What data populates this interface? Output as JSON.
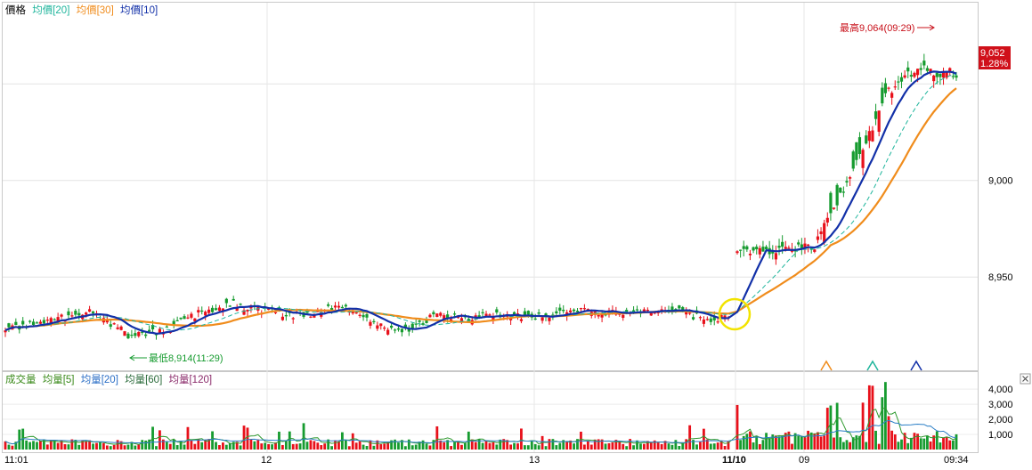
{
  "colors": {
    "up": "#e8101a",
    "down": "#169b2f",
    "ma_price_20": "#1fb59c",
    "ma_price_30": "#f08c1c",
    "ma_price_10": "#1230a8",
    "vol_ma_5": "#2f9a2f",
    "vol_ma_20": "#2a7ec6",
    "vol_ma_60": "#3a8a3a",
    "vol_ma_120": "#8a2a6a",
    "label_dark": "#000000",
    "highlight_circle": "#f2e300",
    "price_tag_bg": "#d0101a"
  },
  "price_legend": [
    {
      "text": "價格",
      "color": "#000000"
    },
    {
      "text": "均價[20]",
      "color": "#1fb59c"
    },
    {
      "text": "均價[30]",
      "color": "#f08c1c"
    },
    {
      "text": "均價[10]",
      "color": "#1230a8"
    }
  ],
  "volume_legend": [
    {
      "text": "成交量",
      "color": "#3a8a1a"
    },
    {
      "text": "均量[5]",
      "color": "#3a8a1a"
    },
    {
      "text": "均量[20]",
      "color": "#2a6ec6"
    },
    {
      "text": "均量[60]",
      "color": "#2a6a3a"
    },
    {
      "text": "均量[120]",
      "color": "#8a2a6a"
    }
  ],
  "annotations": {
    "high_label": "最高9,064(09:29)",
    "low_label": "最低8,914(11:29)",
    "last_price": "9,052",
    "last_change": "1.28%"
  },
  "chart_data": {
    "type": "candlestick",
    "price_axis": {
      "ticks": [
        "8,950",
        "9,000"
      ],
      "tick_values": [
        8950,
        9000
      ],
      "ylim": [
        8910,
        9075
      ]
    },
    "volume_axis": {
      "ticks": [
        "1,000",
        "2,000",
        "3,000",
        "4,000"
      ],
      "tick_values": [
        1000,
        2000,
        3000,
        4000
      ],
      "ylim": [
        0,
        4300
      ]
    },
    "x_ticks": [
      {
        "label": "11:01",
        "bold": false
      },
      {
        "label": "12",
        "bold": false
      },
      {
        "label": "13",
        "bold": false
      },
      {
        "label": "11/10",
        "bold": true
      },
      {
        "label": "09",
        "bold": false
      },
      {
        "label": "09:34",
        "bold": false
      }
    ],
    "session_segments": [
      {
        "start": 8922,
        "count": 148,
        "drift": [
          [
            0,
            8922
          ],
          [
            12,
            8928
          ],
          [
            25,
            8932
          ],
          [
            35,
            8920
          ],
          [
            45,
            8922
          ],
          [
            55,
            8931
          ],
          [
            65,
            8936
          ],
          [
            75,
            8932
          ],
          [
            85,
            8930
          ],
          [
            95,
            8935
          ],
          [
            100,
            8932
          ],
          [
            108,
            8925
          ],
          [
            115,
            8922
          ],
          [
            122,
            8930
          ],
          [
            132,
            8929
          ],
          [
            140,
            8930
          ],
          [
            147,
            8929
          ],
          [
            160,
            8932
          ],
          [
            175,
            8932
          ],
          [
            190,
            8934
          ],
          [
            200,
            8927
          ],
          [
            206,
            8931
          ]
        ]
      },
      {
        "start": 8964,
        "count": 40,
        "drift": [
          [
            0,
            8962
          ],
          [
            6,
            8964
          ],
          [
            14,
            8964
          ],
          [
            20,
            8966
          ],
          [
            24,
            8966
          ],
          [
            28,
            8980
          ],
          [
            34,
            8998
          ],
          [
            40,
            9020
          ],
          [
            46,
            9044
          ],
          [
            52,
            9054
          ],
          [
            58,
            9058
          ],
          [
            62,
            9054
          ],
          [
            66,
            9060
          ],
          [
            68,
            9052
          ]
        ]
      }
    ],
    "high": {
      "value": 9064,
      "time": "09:29"
    },
    "low": {
      "value": 8914,
      "time": "11:29"
    },
    "last": {
      "value": 9052,
      "change_pct": 1.28
    }
  }
}
